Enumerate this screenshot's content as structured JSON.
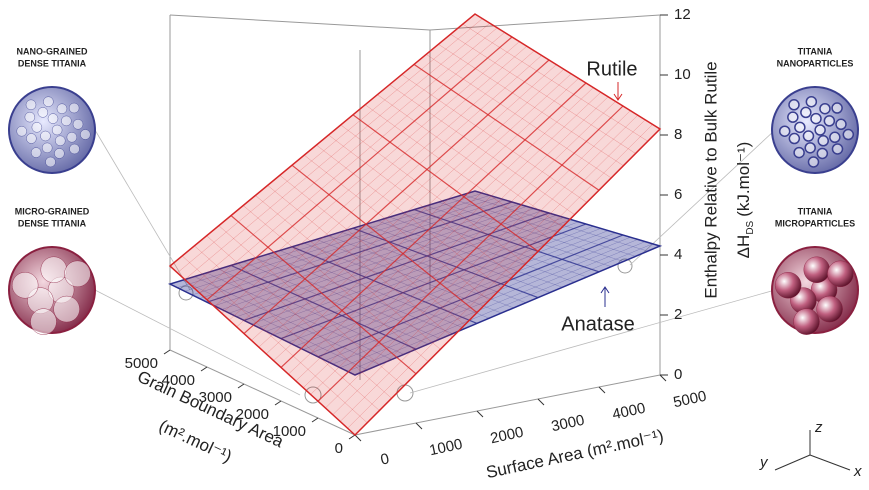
{
  "chart_data": {
    "type": "surface3d",
    "x_label": "Surface Area (m².mol⁻¹)",
    "y_label": "Grain Boundary Area",
    "y_label_unit": "(m².mol⁻¹)",
    "z_label": "Enthalpy Relative to Bulk Rutile",
    "z_label_symbol": "ΔH",
    "z_label_sub": "DS",
    "z_label_unit": "(kJ.mol⁻¹)",
    "x": [
      0,
      5000
    ],
    "y": [
      0,
      5000
    ],
    "xlim": [
      0,
      5000
    ],
    "xticks": [
      0,
      1000,
      2000,
      3000,
      4000,
      5000
    ],
    "ylim": [
      0,
      5000
    ],
    "yticks": [
      0,
      1000,
      2000,
      3000,
      4000,
      5000
    ],
    "zlim": [
      0,
      12
    ],
    "zticks": [
      0,
      2,
      4,
      6,
      8,
      10,
      12
    ],
    "series": [
      {
        "name": "Rutile",
        "color": "#d62728",
        "values": [
          [
            0,
            2.8
          ],
          [
            8.2,
            9.2
          ]
        ]
      },
      {
        "name": "Anatase",
        "color": "#2a2f8f",
        "values": [
          [
            2,
            2.2
          ],
          [
            4.3,
            3.3
          ]
        ]
      }
    ],
    "insets": [
      {
        "label": [
          "NANO-GRAINED",
          "DENSE TITANIA"
        ],
        "color": "#3a3f8f"
      },
      {
        "label": [
          "MICRO-GRAINED",
          "DENSE TITANIA"
        ],
        "color": "#8a2040"
      },
      {
        "label": [
          "TITANIA",
          "NANOPARTICLES"
        ],
        "color": "#3a3f8f"
      },
      {
        "label": [
          "TITANIA",
          "MICROPARTICLES"
        ],
        "color": "#8a2040"
      }
    ],
    "triad": [
      "x",
      "y",
      "z"
    ]
  }
}
